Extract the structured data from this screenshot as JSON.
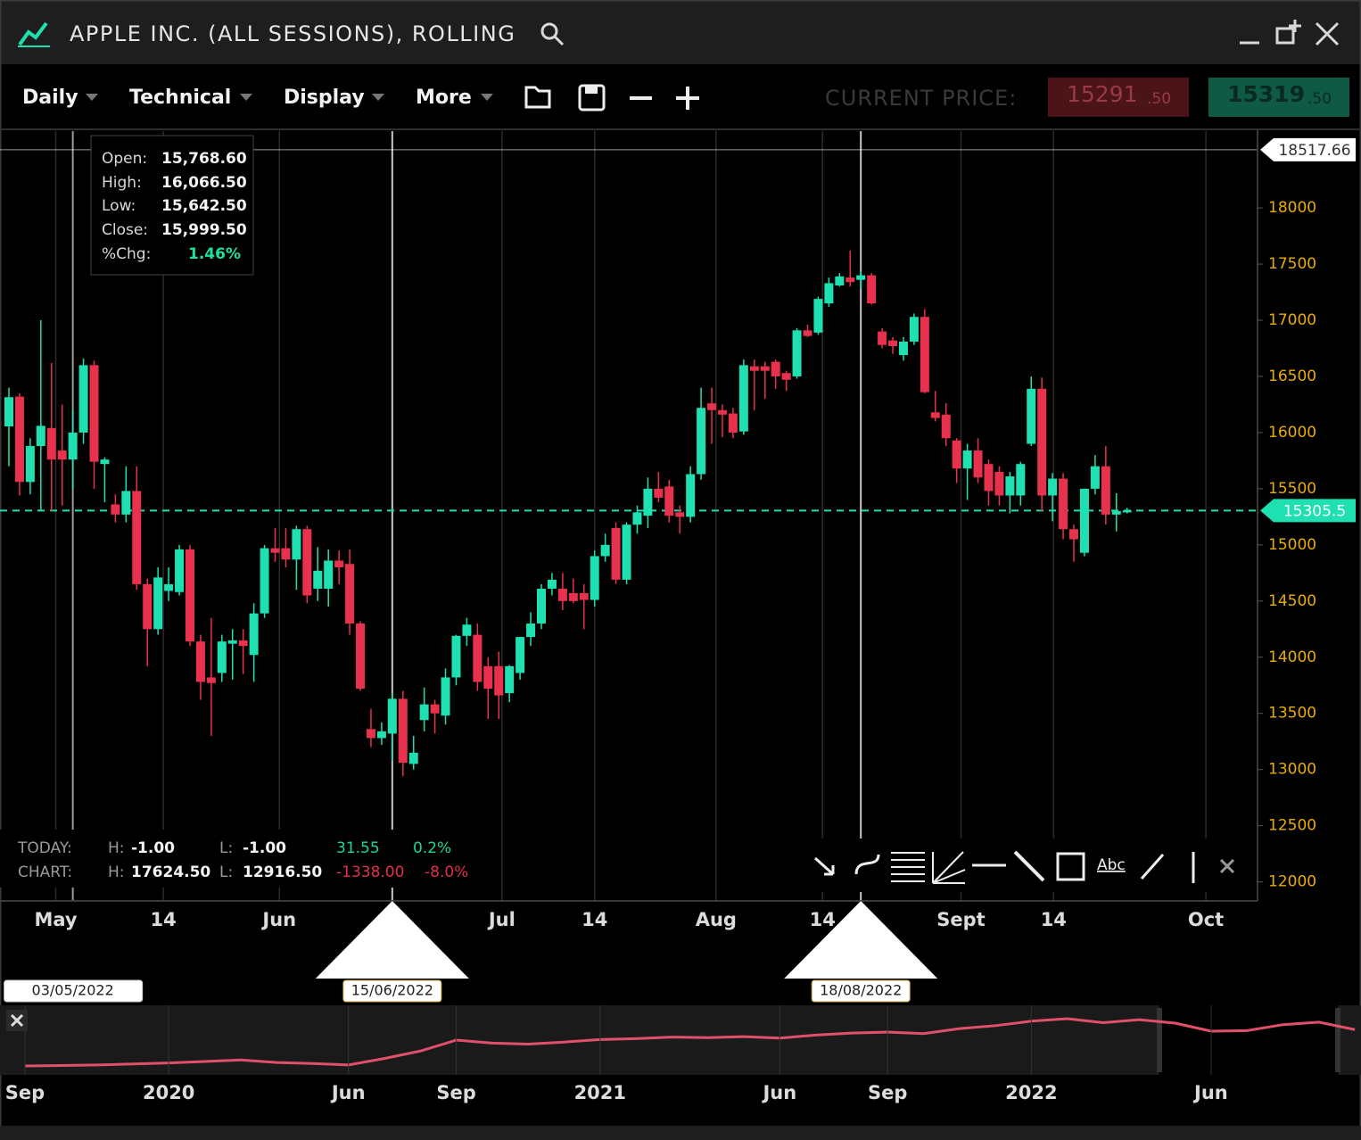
{
  "window": {
    "title": "APPLE INC. (ALL SESSIONS), ROLLING"
  },
  "toolbar": {
    "menus": [
      "Daily",
      "Technical",
      "Display",
      "More"
    ],
    "current_price_label": "CURRENT PRICE:",
    "bid": {
      "whole": "15291",
      "decimals": ".50"
    },
    "ask": {
      "whole": "15319",
      "decimals": ".50"
    }
  },
  "tooltip": {
    "rows": [
      [
        "Open:",
        "15,768.60"
      ],
      [
        "High:",
        "16,066.50"
      ],
      [
        "Low:",
        "15,642.50"
      ],
      [
        "Close:",
        "15,999.50"
      ],
      [
        "%Chg:",
        "1.46%"
      ]
    ]
  },
  "stats": {
    "rows": [
      [
        "TODAY:",
        "H:",
        "-1.00",
        "L:",
        "-1.00",
        "31.55",
        "0.2%"
      ],
      [
        "CHART:",
        "H:",
        "17624.50",
        "L:",
        "12916.50",
        "-1338.00",
        "-8.0%"
      ]
    ]
  },
  "drawing_tools": {
    "text_tool": "Abc"
  },
  "chart_data": [
    {
      "type": "candlestick",
      "up_color": "#1fe0b0",
      "down_color": "#e8314c",
      "grid": true,
      "ylim": [
        11830,
        18660
      ],
      "yticks": [
        12000,
        12500,
        13000,
        13500,
        14000,
        14500,
        15000,
        15500,
        16000,
        16500,
        17000,
        17500,
        18000
      ],
      "xticks": [
        {
          "value": 4.4,
          "label": "May"
        },
        {
          "value": 14.5,
          "label": "14"
        },
        {
          "value": 25.4,
          "label": "Jun"
        },
        {
          "value": 46.3,
          "label": "Jul"
        },
        {
          "value": 55,
          "label": "14"
        },
        {
          "value": 66.4,
          "label": "Aug"
        },
        {
          "value": 76.4,
          "label": "14"
        },
        {
          "value": 89.4,
          "label": "Sept"
        },
        {
          "value": 98.1,
          "label": "14"
        },
        {
          "value": 112.4,
          "label": "Oct"
        }
      ],
      "price_lines": [
        {
          "value": 18517.66,
          "color": "#ffffff",
          "dashed": false
        },
        {
          "value": 15305.5,
          "color": "#1fe0b0",
          "dashed": true
        }
      ],
      "date_markers": [
        {
          "value": 6,
          "label": "03/05/2022",
          "arrow": false
        },
        {
          "value": 36,
          "label": "15/06/2022",
          "arrow": true
        },
        {
          "value": 80,
          "label": "18/08/2022",
          "arrow": true
        }
      ],
      "open": [
        16055,
        16320,
        15560,
        15880,
        16040,
        15840,
        15760,
        16000,
        16600,
        15720,
        15360,
        15270,
        15480,
        14650,
        14250,
        14590,
        14580,
        14960,
        14140,
        13820,
        13860,
        14120,
        14150,
        14020,
        14390,
        14970,
        14970,
        14870,
        15140,
        14610,
        14610,
        14860,
        14830,
        14300,
        13360,
        13280,
        13320,
        13630,
        13050,
        13440,
        13580,
        13480,
        13820,
        14190,
        14200,
        13920,
        13920,
        13680,
        13860,
        14180,
        14300,
        14610,
        14610,
        14570,
        14570,
        14510,
        14900,
        15150,
        14690,
        15180,
        15260,
        15500,
        15520,
        15290,
        15250,
        15630,
        16260,
        16200,
        16170,
        16010,
        16590,
        16590,
        16630,
        16530,
        16500,
        16910,
        16890,
        17150,
        17310,
        17380,
        17360,
        17400,
        16900,
        16820,
        16690,
        16810,
        17030,
        16180,
        16160,
        15930,
        15680,
        15840,
        15720,
        15650,
        15440,
        15440,
        15900,
        16390,
        15440,
        15590,
        15140,
        14930,
        15500,
        15700,
        15270,
        15290
      ],
      "high": [
        16400,
        16350,
        15950,
        17000,
        16620,
        16250,
        16200,
        16660,
        16640,
        15780,
        15450,
        15700,
        15700,
        14700,
        14800,
        14800,
        15000,
        15000,
        14200,
        14350,
        14200,
        14250,
        14250,
        14480,
        15000,
        15150,
        15150,
        15170,
        15170,
        14980,
        14960,
        14950,
        14960,
        14320,
        13540,
        13420,
        13680,
        13700,
        13300,
        13730,
        13620,
        13900,
        14200,
        14350,
        14300,
        14000,
        14050,
        13930,
        14180,
        14400,
        14650,
        14750,
        14750,
        14700,
        14650,
        14950,
        15100,
        15200,
        15200,
        15350,
        15600,
        15650,
        15580,
        15350,
        15700,
        16400,
        16400,
        16250,
        16220,
        16650,
        16650,
        16630,
        16650,
        16550,
        16930,
        16960,
        17210,
        17380,
        17420,
        17620,
        17440,
        17420,
        16930,
        16850,
        16850,
        17060,
        17100,
        16370,
        16260,
        15950,
        15900,
        15950,
        15760,
        15700,
        15650,
        15740,
        16500,
        16490,
        15640,
        15640,
        15180,
        15500,
        15800,
        15880,
        15460,
        15330
      ],
      "low": [
        15700,
        15440,
        15450,
        15300,
        15300,
        15350,
        15500,
        15900,
        15500,
        15380,
        15200,
        15200,
        14600,
        13920,
        14200,
        14500,
        14550,
        14100,
        13620,
        13300,
        13780,
        13800,
        13850,
        13780,
        14350,
        14850,
        14800,
        14600,
        14480,
        14500,
        14450,
        14650,
        14200,
        13700,
        13200,
        13220,
        13080,
        12940,
        13000,
        13340,
        13320,
        13400,
        13750,
        14100,
        13700,
        13450,
        13450,
        13600,
        13800,
        14100,
        14250,
        14550,
        14420,
        14480,
        14250,
        14450,
        14850,
        14650,
        14650,
        15100,
        15150,
        15380,
        15200,
        15100,
        15200,
        15580,
        15900,
        15960,
        15950,
        15980,
        16200,
        16300,
        16390,
        16370,
        16480,
        16850,
        16870,
        17120,
        17300,
        17300,
        17280,
        17140,
        16750,
        16700,
        16640,
        16780,
        16350,
        16100,
        15880,
        15550,
        15400,
        15550,
        15350,
        15350,
        15280,
        15350,
        15880,
        15300,
        15210,
        15050,
        14850,
        14900,
        15450,
        15180,
        15120,
        15280
      ],
      "close": [
        16315,
        15560,
        15880,
        16060,
        15760,
        15760,
        16000,
        16600,
        15740,
        15760,
        15270,
        15480,
        14650,
        14250,
        14710,
        14650,
        14960,
        14140,
        13780,
        13770,
        14140,
        14150,
        14100,
        14390,
        14970,
        14930,
        14870,
        15140,
        14550,
        14770,
        14860,
        14800,
        14300,
        13720,
        13280,
        13340,
        13630,
        13060,
        13150,
        13580,
        13500,
        13820,
        14190,
        14290,
        13780,
        13720,
        13660,
        13920,
        14180,
        14300,
        14610,
        14690,
        14500,
        14500,
        14510,
        14900,
        15000,
        14690,
        15180,
        15290,
        15500,
        15420,
        15260,
        15250,
        15630,
        16220,
        16200,
        16160,
        16000,
        16600,
        16550,
        16550,
        16500,
        16470,
        16910,
        16860,
        17190,
        17330,
        17390,
        17340,
        17400,
        17150,
        16780,
        16770,
        16810,
        17030,
        16360,
        16130,
        15950,
        15680,
        15840,
        15600,
        15480,
        15440,
        15610,
        15720,
        16390,
        15440,
        15590,
        15140,
        15050,
        15500,
        15700,
        15270,
        15300,
        15305.5
      ]
    },
    {
      "type": "line",
      "color": "#e0506a",
      "values": [
        8000,
        8100,
        8200,
        8400,
        8600,
        8900,
        9200,
        8700,
        8500,
        8200,
        9500,
        11000,
        13200,
        12600,
        12400,
        12800,
        13300,
        13500,
        13800,
        13700,
        13900,
        13600,
        14200,
        14600,
        14800,
        14500,
        15500,
        16100,
        17000,
        17500,
        16700,
        17300,
        16600,
        15000,
        15100,
        16300,
        16800,
        15300
      ],
      "xticks": [
        {
          "value": 0,
          "label": "Sep"
        },
        {
          "value": 4,
          "label": "2020"
        },
        {
          "value": 9,
          "label": "Jun"
        },
        {
          "value": 12,
          "label": "Sep"
        },
        {
          "value": 16,
          "label": "2021"
        },
        {
          "value": 21,
          "label": "Jun"
        },
        {
          "value": 24,
          "label": "Sep"
        },
        {
          "value": 28,
          "label": "2022"
        },
        {
          "value": 33,
          "label": "Jun"
        }
      ]
    }
  ]
}
